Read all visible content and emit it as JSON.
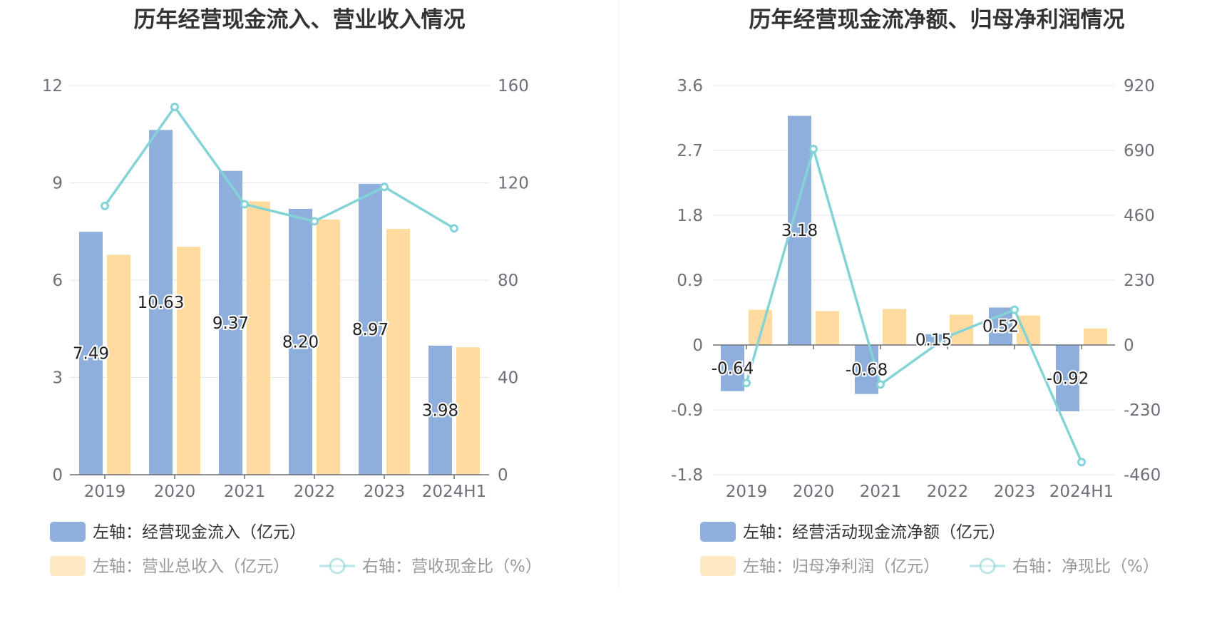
{
  "colors": {
    "bar_blue": "#8eaedb",
    "bar_yellow": "#ffdb9f",
    "line_teal": "#84d3d7",
    "grid": "#e0e6f1",
    "axis": "#6e7079",
    "title": "#333333",
    "legend_text": "#333333",
    "legend_text_light": "#999999"
  },
  "chart_data": [
    {
      "type": "bar+line",
      "title": "历年经营现金流入、营业收入情况",
      "categories": [
        "2019",
        "2020",
        "2021",
        "2022",
        "2023",
        "2024H1"
      ],
      "left_axis": {
        "min": 0,
        "max": 12,
        "ticks": [
          "0",
          "3",
          "6",
          "9",
          "12"
        ]
      },
      "right_axis": {
        "min": 0,
        "max": 160,
        "ticks": [
          "0",
          "40",
          "80",
          "120",
          "160"
        ]
      },
      "series": [
        {
          "name": "左轴：经营现金流入（亿元）",
          "kind": "bar",
          "axis": "left",
          "values": [
            7.49,
            10.63,
            9.37,
            8.2,
            8.97,
            3.98
          ],
          "labels": [
            "7.49",
            "10.63",
            "9.37",
            "8.20",
            "8.97",
            "3.98"
          ]
        },
        {
          "name": "左轴：营业总收入（亿元）",
          "kind": "bar",
          "axis": "left",
          "values": [
            6.78,
            7.03,
            8.43,
            7.87,
            7.58,
            3.93
          ]
        },
        {
          "name": "右轴：营收现金比（%）",
          "kind": "line",
          "axis": "right",
          "values": [
            110.5,
            151.2,
            111.2,
            104.2,
            118.3,
            101.3
          ]
        }
      ]
    },
    {
      "type": "bar+line",
      "title": "历年经营现金流净额、归母净利润情况",
      "categories": [
        "2019",
        "2020",
        "2021",
        "2022",
        "2023",
        "2024H1"
      ],
      "left_axis": {
        "min": -1.8,
        "max": 3.6,
        "ticks": [
          "-1.8",
          "-0.9",
          "0",
          "0.9",
          "1.8",
          "2.7",
          "3.6"
        ]
      },
      "right_axis": {
        "min": -460,
        "max": 920,
        "ticks": [
          "-460",
          "-230",
          "0",
          "230",
          "460",
          "690",
          "920"
        ]
      },
      "series": [
        {
          "name": "左轴：经营活动现金流净额（亿元）",
          "kind": "bar",
          "axis": "left",
          "values": [
            -0.64,
            3.18,
            -0.68,
            0.15,
            0.52,
            -0.92
          ],
          "labels": [
            "-0.64",
            "3.18",
            "-0.68",
            "0.15",
            "0.52",
            "-0.92"
          ]
        },
        {
          "name": "左轴：归母净利润（亿元）",
          "kind": "bar",
          "axis": "left",
          "values": [
            0.49,
            0.47,
            0.5,
            0.42,
            0.41,
            0.23
          ]
        },
        {
          "name": "右轴：净现比（%）",
          "kind": "line",
          "axis": "right",
          "values": [
            -135,
            695,
            -140,
            30,
            125,
            -415
          ]
        }
      ]
    }
  ]
}
